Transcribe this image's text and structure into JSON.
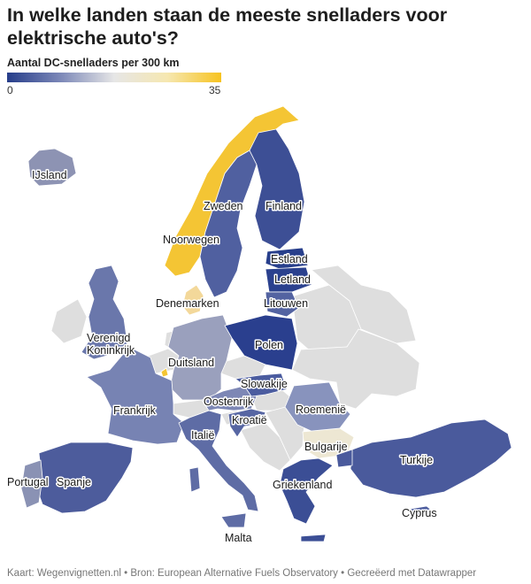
{
  "title": "In welke landen staan de meeste snelladers voor elektrische auto's?",
  "legend": {
    "title": "Aantal DC-snelladers per 300 km",
    "min": "0",
    "max": "35",
    "colors": [
      "#263d8a",
      "#7c88b8",
      "#e6e6e6",
      "#f6e7b0",
      "#f7c31f"
    ]
  },
  "map_data": {
    "type": "choropleth",
    "metric": "Aantal DC-snelladers per 300 km",
    "scale": [
      0,
      35
    ],
    "no_data_color": "#dedede",
    "countries": [
      {
        "name": "IJsland",
        "color": "#8d93b3"
      },
      {
        "name": "Noorwegen",
        "color": "#f4c534"
      },
      {
        "name": "Zweden",
        "color": "#5060a0"
      },
      {
        "name": "Finland",
        "color": "#3d4f95"
      },
      {
        "name": "Estland",
        "color": "#283f8c"
      },
      {
        "name": "Letland",
        "color": "#2b418e"
      },
      {
        "name": "Litouwen",
        "color": "#5363a1"
      },
      {
        "name": "Denemarken",
        "color": "#f3d89a"
      },
      {
        "name": "Verenigd Koninkrijk",
        "color": "#6a77ab"
      },
      {
        "name": "Duitsland",
        "color": "#9aa0bd"
      },
      {
        "name": "Polen",
        "color": "#2a3f8e"
      },
      {
        "name": "Frankrijk",
        "color": "#7783b3"
      },
      {
        "name": "Oostenrijk",
        "color": "#7d87b5"
      },
      {
        "name": "Slowakije",
        "color": "#4b5c9f"
      },
      {
        "name": "Roemenië",
        "color": "#8893bd"
      },
      {
        "name": "Kroatië",
        "color": "#5766a3"
      },
      {
        "name": "Italië",
        "color": "#5e6ca5"
      },
      {
        "name": "Bulgarije",
        "color": "#ede7d3"
      },
      {
        "name": "Spanje",
        "color": "#4d5c9c"
      },
      {
        "name": "Portugal",
        "color": "#8a92b4"
      },
      {
        "name": "Griekenland",
        "color": "#3b4e95"
      },
      {
        "name": "Turkije",
        "color": "#4a5a9c"
      },
      {
        "name": "Cyprus",
        "color": "#4e5e9f"
      },
      {
        "name": "Malta",
        "color": "#9aa0bd"
      },
      {
        "name": "Luxemburg",
        "color": "#f4c534"
      }
    ]
  },
  "footer": "Kaart: Wegenvignetten.nl • Bron: European Alternative Fuels Observatory • Gecreëerd met Datawrapper"
}
